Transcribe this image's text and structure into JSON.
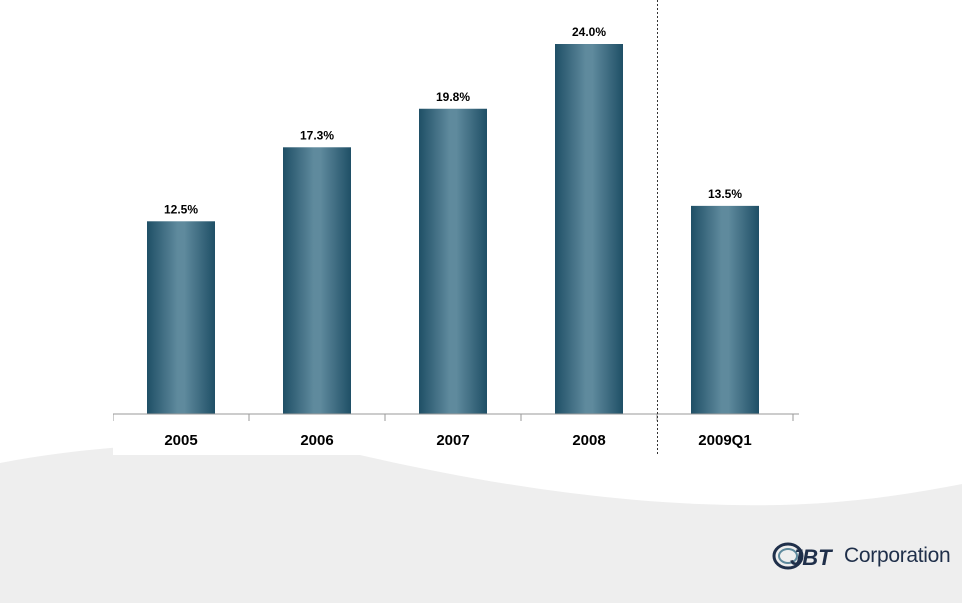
{
  "chart_data": {
    "type": "bar",
    "categories": [
      "2005",
      "2006",
      "2007",
      "2008",
      "2009Q1"
    ],
    "values": [
      12.5,
      17.3,
      19.8,
      24.0,
      13.5
    ],
    "value_labels": [
      "12.5%",
      "17.3%",
      "19.8%",
      "24.0%",
      "13.5%"
    ],
    "ylim": [
      0,
      24.0
    ],
    "grid": false,
    "separator_before_category": "2009Q1",
    "bar_color": "#1f4f66",
    "bar_highlight_color": "#5f8a9d"
  },
  "logo": {
    "mark": "JBT",
    "text": "Corporation",
    "color": "#1f2f4a"
  },
  "background": {
    "wave_color": "#eeeeee"
  }
}
